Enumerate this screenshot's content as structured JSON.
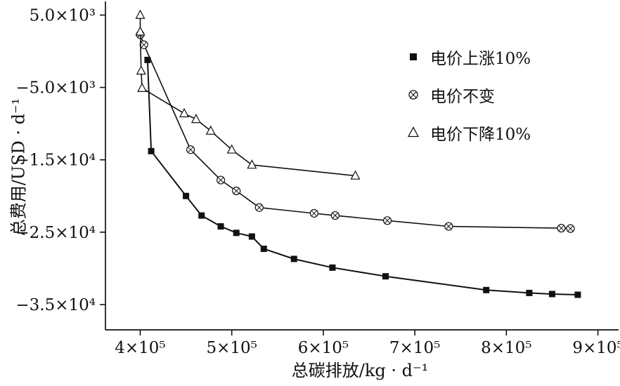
{
  "colors": {
    "line": "#111111",
    "background": "#ffffff"
  },
  "chart_data": {
    "type": "line",
    "title": "",
    "xlabel": "总碳排放/kg · d⁻¹",
    "ylabel": "总费用/USD · d⁻¹",
    "xlim": [
      362000,
      918000
    ],
    "ylim": [
      -38500,
      6500
    ],
    "grid": false,
    "legend_position": "top-right",
    "xticks": [
      {
        "value": 400000,
        "label": "4×10⁵"
      },
      {
        "value": 500000,
        "label": "5×10⁵"
      },
      {
        "value": 600000,
        "label": "6×10⁵"
      },
      {
        "value": 700000,
        "label": "7×10⁵"
      },
      {
        "value": 800000,
        "label": "8×10⁵"
      },
      {
        "value": 900000,
        "label": "9×10⁵"
      }
    ],
    "yticks": [
      {
        "value": 5000,
        "label": "5.0×10³"
      },
      {
        "value": -5000,
        "label": "−5.0×10³"
      },
      {
        "value": -15000,
        "label": "−1.5×10⁴"
      },
      {
        "value": -25000,
        "label": "−2.5×10⁴"
      },
      {
        "value": -35000,
        "label": "−3.5×10⁴"
      }
    ],
    "series": [
      {
        "name": "电价上涨10%",
        "marker": "filled-square",
        "line_width": 2,
        "points": [
          [
            408000,
            -1200
          ],
          [
            412000,
            -13800
          ],
          [
            450000,
            -20000
          ],
          [
            467000,
            -22700
          ],
          [
            488000,
            -24200
          ],
          [
            505000,
            -25100
          ],
          [
            522000,
            -25600
          ],
          [
            535000,
            -27300
          ],
          [
            568000,
            -28700
          ],
          [
            610000,
            -29900
          ],
          [
            668000,
            -31100
          ],
          [
            778000,
            -33000
          ],
          [
            825000,
            -33400
          ],
          [
            850000,
            -33550
          ],
          [
            878000,
            -33650
          ]
        ]
      },
      {
        "name": "电价不变",
        "marker": "circle-x",
        "line_width": 1.6,
        "points": [
          [
            400000,
            2300
          ],
          [
            404000,
            900
          ],
          [
            455000,
            -13600
          ],
          [
            488000,
            -17800
          ],
          [
            505000,
            -19300
          ],
          [
            530000,
            -21600
          ],
          [
            590000,
            -22400
          ],
          [
            613000,
            -22700
          ],
          [
            670000,
            -23400
          ],
          [
            737000,
            -24200
          ],
          [
            860000,
            -24450
          ],
          [
            870000,
            -24500
          ]
        ]
      },
      {
        "name": "电价下降10%",
        "marker": "open-triangle",
        "line_width": 1.6,
        "points": [
          [
            400000,
            5000
          ],
          [
            400000,
            2700
          ],
          [
            401000,
            -2700
          ],
          [
            402000,
            -5100
          ],
          [
            448000,
            -8600
          ],
          [
            461000,
            -9400
          ],
          [
            477000,
            -11000
          ],
          [
            500000,
            -13600
          ],
          [
            522000,
            -15700
          ],
          [
            635000,
            -17200
          ]
        ]
      }
    ]
  }
}
